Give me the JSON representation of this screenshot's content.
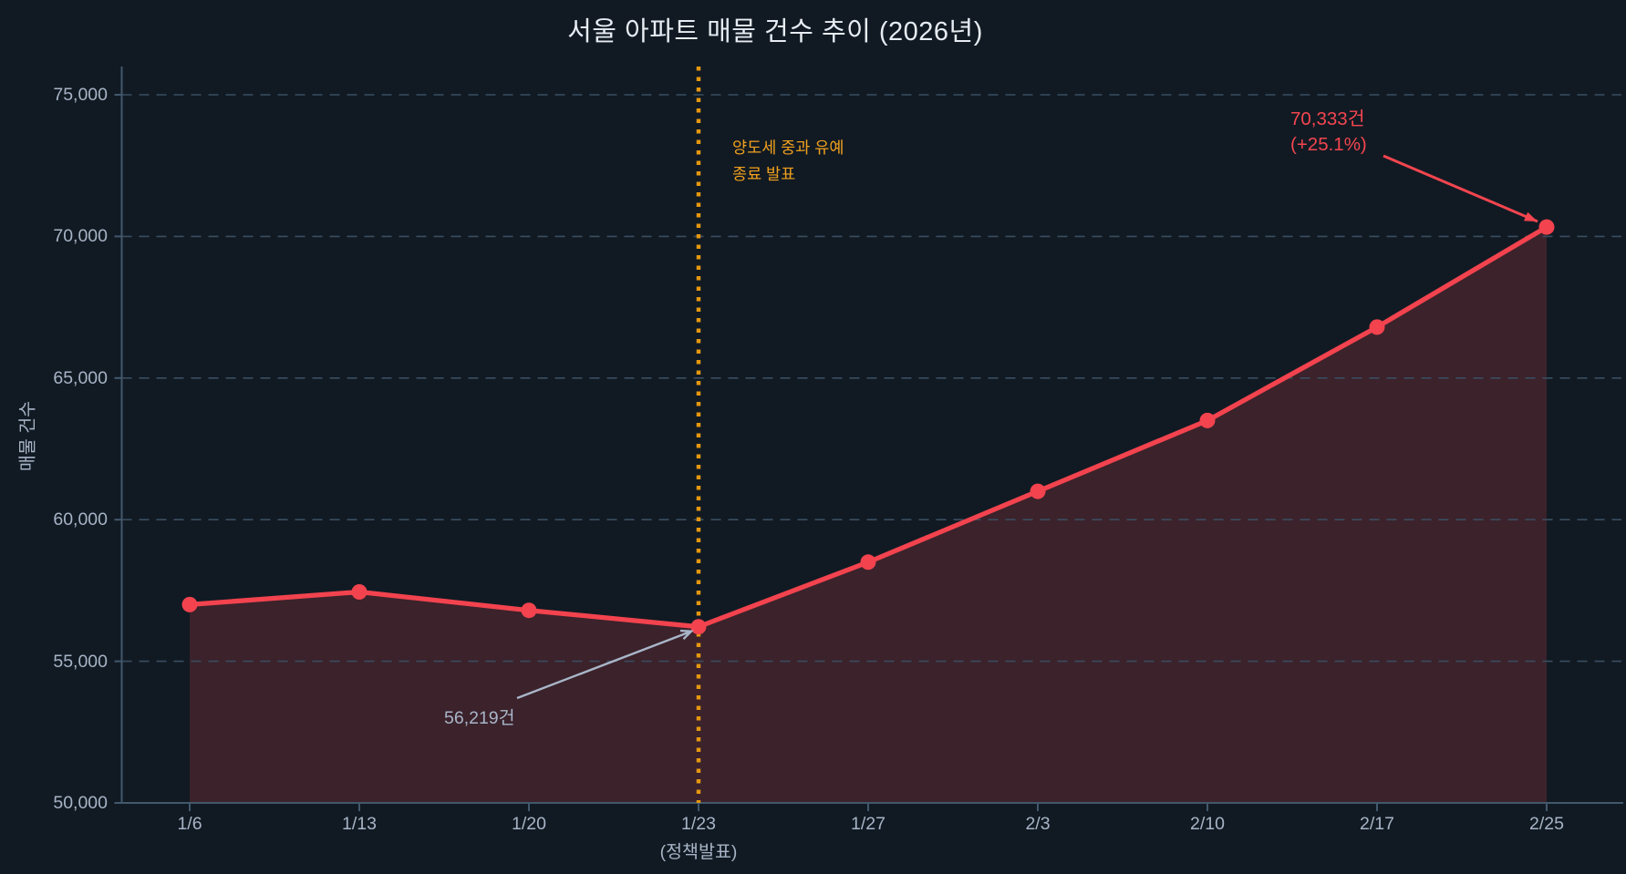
{
  "title": "서울 아파트 매물 건수 추이 (2026년)",
  "colors": {
    "background": "#111a23",
    "line": "#f2434e",
    "area_fill": "rgba(242,67,78,0.19)",
    "grid": "#3b4d60",
    "spine": "#42586c",
    "tick_text": "#a7b4c6",
    "title_text": "#e7ecf2",
    "policy_orange": "#f0a01e",
    "vline_orange": "#e5980f",
    "annotation_red": "#f4454f",
    "annotation_grey": "#a9b6c8"
  },
  "chart_data": {
    "type": "line",
    "title": "서울 아파트 매물 건수 추이 (2026년)",
    "xlabel": "",
    "ylabel": "매물 건수",
    "categories": [
      "1/6",
      "1/13",
      "1/20",
      "1/23",
      "1/27",
      "2/3",
      "2/10",
      "2/17",
      "2/25"
    ],
    "series": [
      {
        "name": "매물 건수",
        "values": [
          57000,
          57450,
          56800,
          56219,
          58500,
          61000,
          63500,
          66800,
          70333
        ]
      }
    ],
    "ylim": [
      50000,
      75000
    ],
    "yticks": [
      50000,
      55000,
      60000,
      65000,
      70000,
      75000
    ],
    "grid": "horizontal-dashed",
    "legend_position": "none",
    "area_fill": true,
    "x_sublabel": {
      "category": "1/23",
      "text": "(정책발표)"
    },
    "annotations": {
      "policy_vline": {
        "at_category": "1/23",
        "style": "dotted-vertical",
        "color": "#e5980f",
        "label_lines": [
          "양도세 중과 유예",
          "종료 발표"
        ]
      },
      "final_point": {
        "points_to": "2/25",
        "value": 70333,
        "label_lines": [
          "70,333건",
          "(+25.1%)"
        ],
        "color": "#f4454f"
      },
      "trough_point": {
        "points_to": "1/23",
        "value": 56219,
        "text": "56,219건",
        "color": "#a9b6c8"
      }
    }
  }
}
